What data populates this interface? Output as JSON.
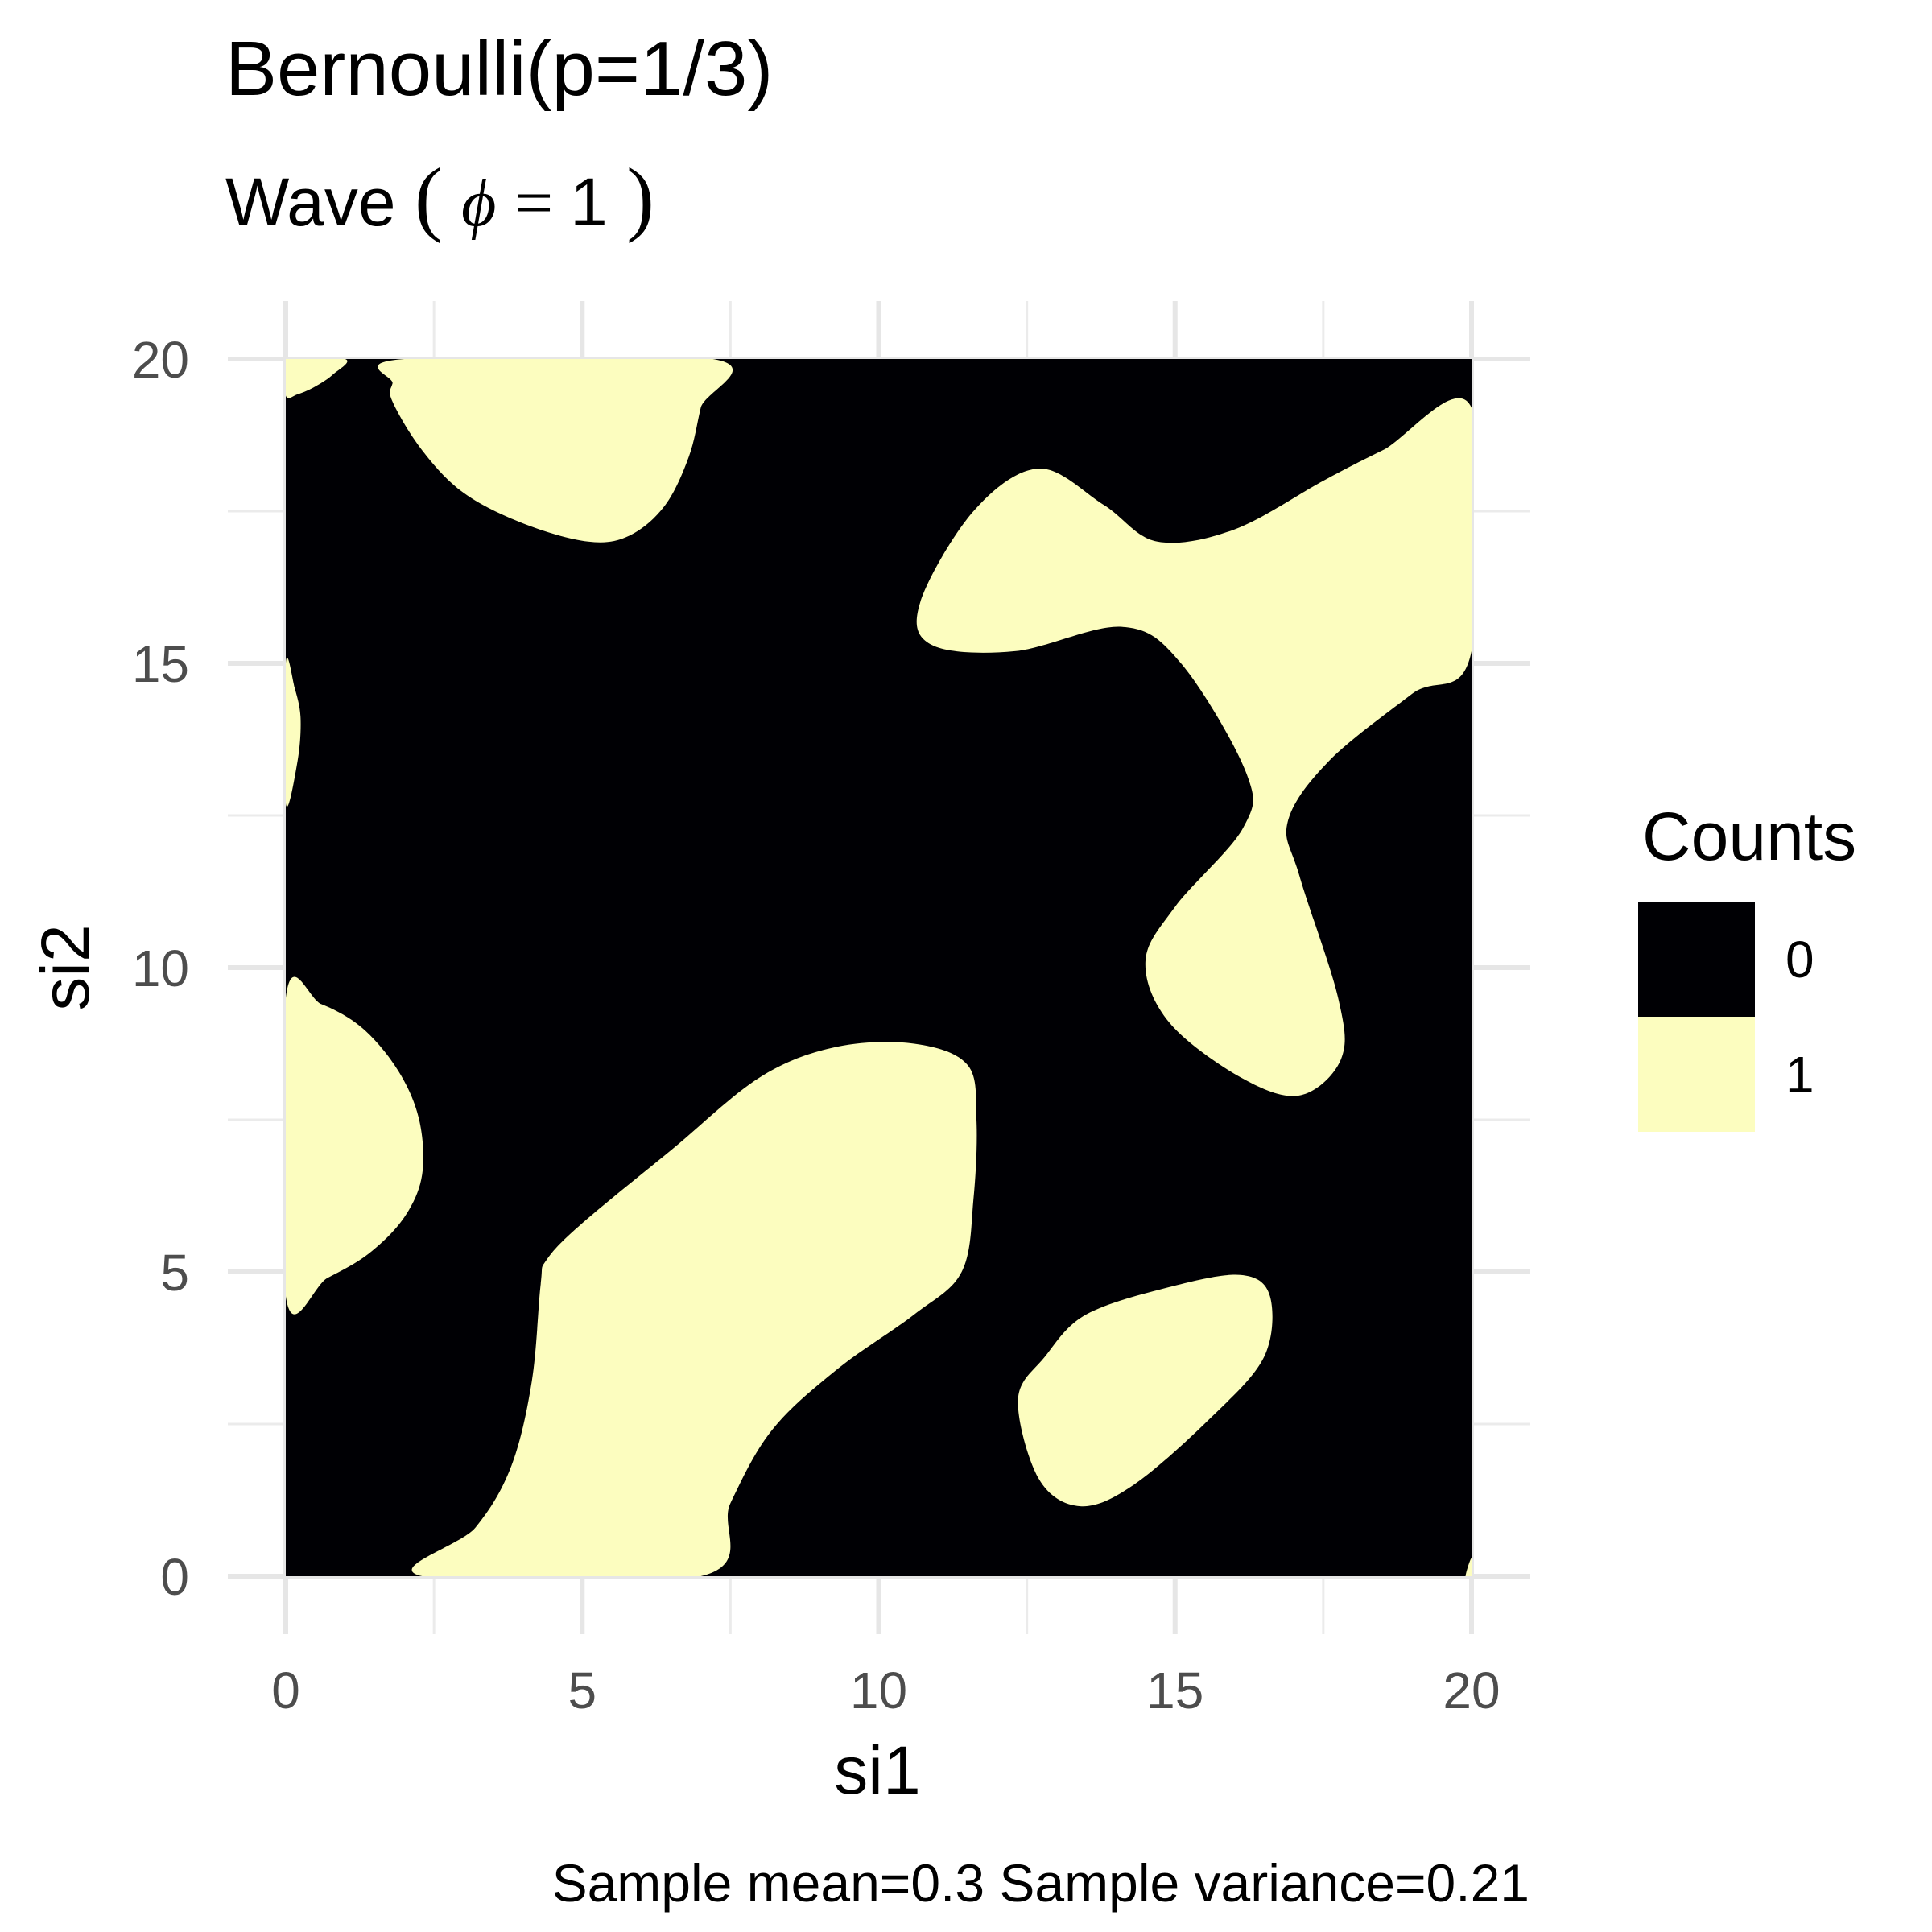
{
  "chart_data": {
    "type": "heatmap",
    "title": "Bernoulli(p=1/3)",
    "subtitle": {
      "prefix": "Wave",
      "open": "(",
      "symbol": "ϕ",
      "equals": " = ",
      "value": "1",
      "close": ")"
    },
    "xlabel": "si1",
    "ylabel": "si2",
    "xlim": [
      0,
      20
    ],
    "ylim": [
      0,
      20
    ],
    "x_ticks": [
      0,
      5,
      10,
      15,
      20
    ],
    "y_ticks": [
      0,
      5,
      10,
      15,
      20
    ],
    "x_tick_labels": [
      "0",
      "5",
      "10",
      "15",
      "20"
    ],
    "y_tick_labels": [
      "0",
      "5",
      "10",
      "15",
      "20"
    ],
    "grid": true,
    "legend": {
      "title": "Counts",
      "position": "right",
      "entries": [
        {
          "label": "0",
          "color": "#000004"
        },
        {
          "label": "1",
          "color": "#FCFDBF"
        }
      ]
    },
    "caption": "Sample mean=0.3 Sample variance=0.21",
    "background_value": 0,
    "regions_value_1": [
      {
        "name": "region-top-left-corner",
        "boundary": [
          [
            0,
            19.4
          ],
          [
            0.2,
            19.42
          ],
          [
            0.5,
            19.55
          ],
          [
            0.8,
            19.75
          ],
          [
            1,
            20
          ],
          [
            0,
            20
          ]
        ]
      },
      {
        "name": "region-left-15",
        "boundary": [
          [
            0,
            15
          ],
          [
            0.15,
            14.6
          ],
          [
            0.25,
            14.1
          ],
          [
            0.2,
            13.4
          ],
          [
            0,
            12.7
          ]
        ]
      },
      {
        "name": "region-left-8",
        "boundary": [
          [
            0,
            9.5
          ],
          [
            0.6,
            9.4
          ],
          [
            1.3,
            9.0
          ],
          [
            1.9,
            8.3
          ],
          [
            2.25,
            7.5
          ],
          [
            2.3,
            6.6
          ],
          [
            2.0,
            5.9
          ],
          [
            1.4,
            5.3
          ],
          [
            0.7,
            4.9
          ],
          [
            0,
            4.6
          ]
        ]
      },
      {
        "name": "region-top-center",
        "boundary": [
          [
            2,
            20
          ],
          [
            7.2,
            20
          ],
          [
            7.0,
            19.2
          ],
          [
            6.8,
            18.4
          ],
          [
            6.4,
            17.6
          ],
          [
            5.8,
            17.1
          ],
          [
            5.1,
            17.0
          ],
          [
            4.0,
            17.3
          ],
          [
            3.0,
            17.8
          ],
          [
            2.3,
            18.5
          ],
          [
            1.8,
            19.3
          ],
          [
            1.8,
            19.6
          ]
        ]
      },
      {
        "name": "region-center-diagonal",
        "boundary": [
          [
            2.3,
            0
          ],
          [
            7.0,
            0
          ],
          [
            7.5,
            1.2
          ],
          [
            8.2,
            2.4
          ],
          [
            9.3,
            3.4
          ],
          [
            10.6,
            4.3
          ],
          [
            11.4,
            5.0
          ],
          [
            11.6,
            6.2
          ],
          [
            11.65,
            7.5
          ],
          [
            11.5,
            8.4
          ],
          [
            10.6,
            8.75
          ],
          [
            9.3,
            8.7
          ],
          [
            8.0,
            8.2
          ],
          [
            6.5,
            7.0
          ],
          [
            5.0,
            5.8
          ],
          [
            4.4,
            5.2
          ],
          [
            4.3,
            4.8
          ],
          [
            4.15,
            3.2
          ],
          [
            3.8,
            1.8
          ],
          [
            3.2,
            0.8
          ]
        ]
      },
      {
        "name": "region-right-band",
        "boundary": [
          [
            20,
            19.2
          ],
          [
            18.5,
            18.5
          ],
          [
            17.5,
            18.0
          ],
          [
            16.0,
            17.2
          ],
          [
            14.7,
            17.0
          ],
          [
            13.8,
            17.6
          ],
          [
            12.7,
            18.2
          ],
          [
            11.6,
            17.5
          ],
          [
            10.7,
            16.0
          ],
          [
            10.9,
            15.3
          ],
          [
            12.3,
            15.2
          ],
          [
            14.1,
            15.6
          ],
          [
            15.1,
            15.0
          ],
          [
            16.2,
            13.2
          ],
          [
            16.15,
            12.3
          ],
          [
            15.0,
            11.0
          ],
          [
            14.5,
            10.1
          ],
          [
            14.9,
            9.1
          ],
          [
            16.1,
            8.2
          ],
          [
            17.1,
            7.9
          ],
          [
            17.8,
            8.5
          ],
          [
            17.75,
            9.5
          ],
          [
            17.1,
            11.5
          ],
          [
            16.9,
            12.4
          ],
          [
            17.6,
            13.4
          ],
          [
            19.0,
            14.5
          ],
          [
            20,
            15.2
          ]
        ]
      },
      {
        "name": "region-bottom-right",
        "boundary": [
          [
            12.8,
            3.6
          ],
          [
            13.5,
            4.3
          ],
          [
            14.9,
            4.75
          ],
          [
            16.1,
            4.95
          ],
          [
            16.6,
            4.6
          ],
          [
            16.5,
            3.6
          ],
          [
            15.6,
            2.6
          ],
          [
            14.3,
            1.5
          ],
          [
            13.4,
            1.15
          ],
          [
            12.7,
            1.6
          ],
          [
            12.35,
            2.9
          ]
        ]
      },
      {
        "name": "region-bottom-right-corner",
        "boundary": [
          [
            19.9,
            0
          ],
          [
            20,
            0
          ],
          [
            20,
            0.3
          ]
        ]
      }
    ]
  }
}
